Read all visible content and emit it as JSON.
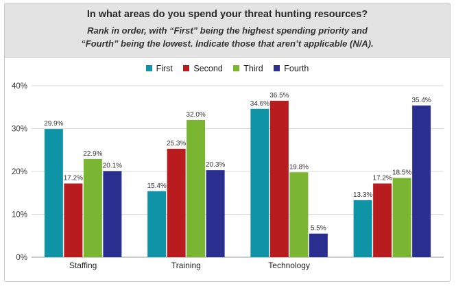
{
  "header": {
    "title": "In what areas do you spend your threat hunting resources?",
    "subtitle_line1": "Rank in order, with “First” being the highest spending priority and",
    "subtitle_line2": "“Fourth” being the lowest. Indicate those that aren’t applicable (N/A)."
  },
  "colors": {
    "First": "#0f93a6",
    "Second": "#b81c1e",
    "Third": "#7bb632",
    "Fourth": "#2a2f8f",
    "grid": "#d9d9d9",
    "header_bg": "#e3e3e3"
  },
  "chart_data": {
    "type": "bar",
    "title": "In what areas do you spend your threat hunting resources?",
    "categories": [
      "Staffing",
      "Training",
      "Technology",
      ""
    ],
    "series": [
      {
        "name": "First",
        "values": [
          29.9,
          15.4,
          34.6,
          13.3
        ]
      },
      {
        "name": "Second",
        "values": [
          17.2,
          25.3,
          36.5,
          17.2
        ]
      },
      {
        "name": "Third",
        "values": [
          22.9,
          32.0,
          19.8,
          18.5
        ]
      },
      {
        "name": "Fourth",
        "values": [
          20.1,
          20.3,
          5.5,
          35.4
        ]
      }
    ],
    "value_labels": [
      [
        "29.9%",
        "15.4%",
        "34.6%",
        "13.3%"
      ],
      [
        "17.2%",
        "25.3%",
        "36.5%",
        "17.2%"
      ],
      [
        "22.9%",
        "32.0%",
        "19.8%",
        "18.5%"
      ],
      [
        "20.1%",
        "20.3%",
        "5.5%",
        "35.4%"
      ]
    ],
    "ylim": [
      0,
      40
    ],
    "yticks": [
      0,
      10,
      20,
      30,
      40
    ],
    "ytick_labels": [
      "0%",
      "10%",
      "20%",
      "30%",
      "40%"
    ],
    "grid": true,
    "legend_position": "top-center"
  }
}
